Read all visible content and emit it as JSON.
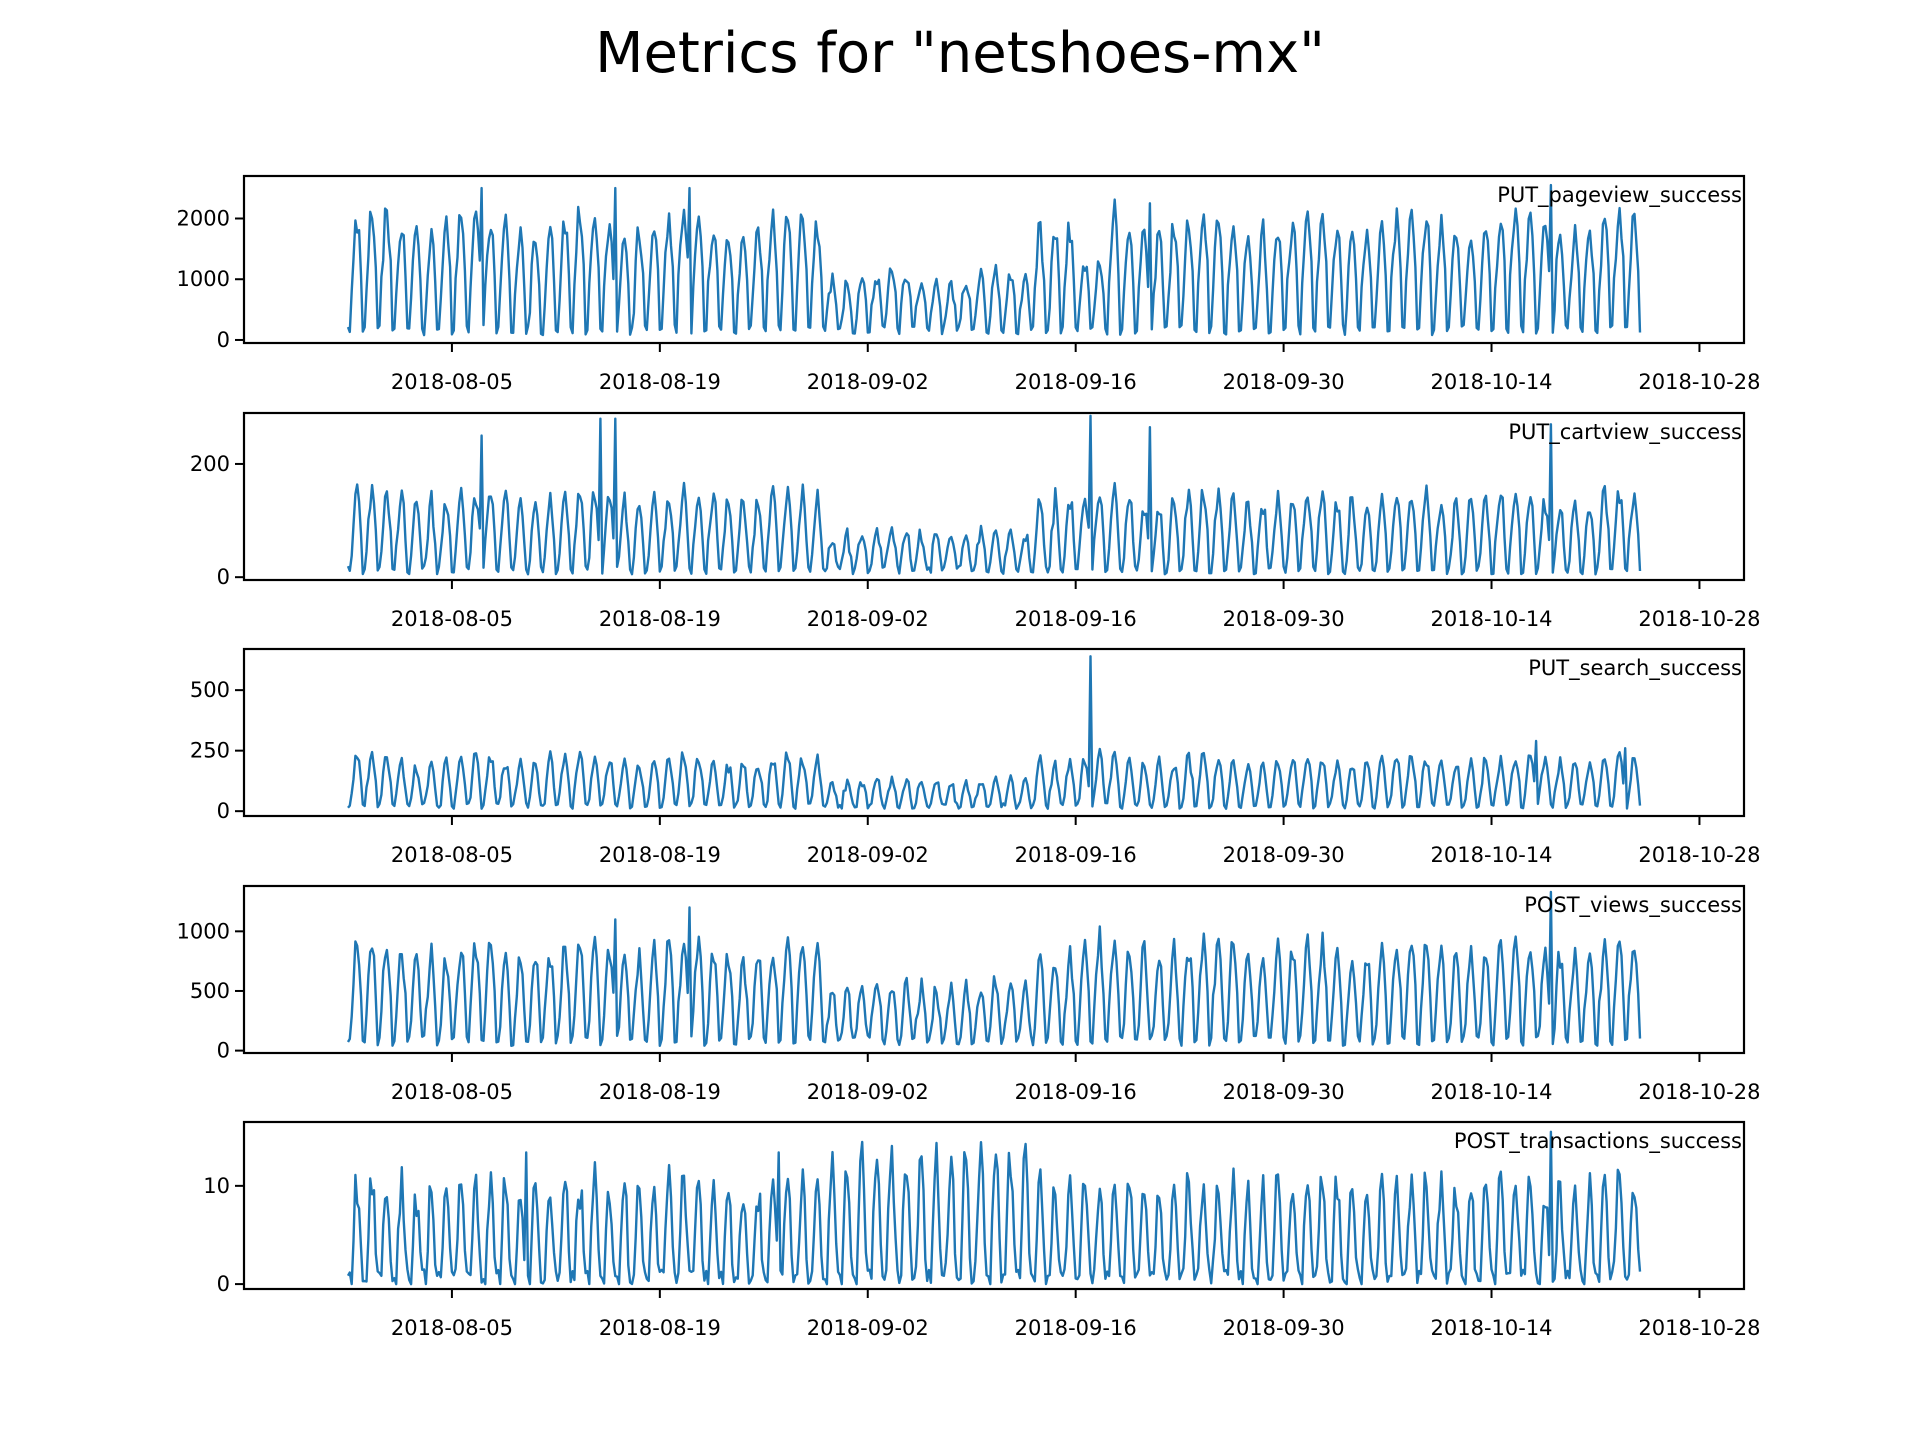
{
  "page": {
    "title": "Metrics for \"netshoes-mx\"",
    "line_color": "#1f77b4"
  },
  "chart_data": [
    {
      "type": "line",
      "series": [
        {
          "name": "PUT_pageview_success"
        }
      ],
      "x_range": [
        "2018-07-29",
        "2018-10-24"
      ],
      "xlim": [
        "2018-07-22",
        "2018-10-31"
      ],
      "ylim": [
        -50,
        2700
      ],
      "yticks": [
        0,
        1000,
        2000
      ],
      "xticks": [
        "2018-08-05",
        "2018-08-19",
        "2018-09-02",
        "2018-09-16",
        "2018-09-30",
        "2018-10-14",
        "2018-10-28"
      ],
      "baseline": 1200,
      "daily_amplitude": 700,
      "low": 80,
      "peak": 2550,
      "peaks": [
        [
          "2018-08-07",
          2500
        ],
        [
          "2018-08-16",
          2500
        ],
        [
          "2018-08-21",
          2500
        ],
        [
          "2018-09-21",
          2250
        ],
        [
          "2018-10-18",
          2550
        ]
      ],
      "dips": [
        [
          "2018-08-30",
          "2018-09-13",
          650
        ],
        [
          "2018-09-16",
          "2018-09-18",
          800
        ]
      ]
    },
    {
      "type": "line",
      "series": [
        {
          "name": "PUT_cartview_success"
        }
      ],
      "x_range": [
        "2018-07-29",
        "2018-10-24"
      ],
      "xlim": [
        "2018-07-22",
        "2018-10-31"
      ],
      "ylim": [
        -5,
        290
      ],
      "yticks": [
        0,
        200
      ],
      "xticks": [
        "2018-08-05",
        "2018-08-19",
        "2018-09-02",
        "2018-09-16",
        "2018-09-30",
        "2018-10-14",
        "2018-10-28"
      ],
      "baseline": 80,
      "daily_amplitude": 60,
      "low": 5,
      "peak": 285,
      "peaks": [
        [
          "2018-08-07",
          250
        ],
        [
          "2018-08-15",
          280
        ],
        [
          "2018-08-16",
          280
        ],
        [
          "2018-09-17",
          285
        ],
        [
          "2018-09-21",
          265
        ],
        [
          "2018-10-18",
          270
        ]
      ],
      "dips": [
        [
          "2018-08-30",
          "2018-09-13",
          45
        ]
      ]
    },
    {
      "type": "line",
      "series": [
        {
          "name": "PUT_search_success"
        }
      ],
      "x_range": [
        "2018-07-29",
        "2018-10-24"
      ],
      "xlim": [
        "2018-07-22",
        "2018-10-31"
      ],
      "ylim": [
        -20,
        670
      ],
      "yticks": [
        0,
        250,
        500
      ],
      "xticks": [
        "2018-08-05",
        "2018-08-19",
        "2018-09-02",
        "2018-09-16",
        "2018-09-30",
        "2018-10-14",
        "2018-10-28"
      ],
      "baseline": 120,
      "daily_amplitude": 95,
      "low": 10,
      "peak": 640,
      "peaks": [
        [
          "2018-09-17",
          640
        ],
        [
          "2018-10-17",
          290
        ],
        [
          "2018-10-23",
          260
        ]
      ],
      "dips": [
        [
          "2018-08-30",
          "2018-09-13",
          70
        ]
      ]
    },
    {
      "type": "line",
      "series": [
        {
          "name": "POST_views_success"
        }
      ],
      "x_range": [
        "2018-07-29",
        "2018-10-24"
      ],
      "xlim": [
        "2018-07-22",
        "2018-10-31"
      ],
      "ylim": [
        -20,
        1380
      ],
      "yticks": [
        0,
        500,
        1000
      ],
      "xticks": [
        "2018-08-05",
        "2018-08-19",
        "2018-09-02",
        "2018-09-16",
        "2018-09-30",
        "2018-10-14",
        "2018-10-28"
      ],
      "baseline": 500,
      "daily_amplitude": 350,
      "low": 40,
      "peak": 1330,
      "peaks": [
        [
          "2018-08-16",
          1100
        ],
        [
          "2018-08-21",
          1200
        ],
        [
          "2018-10-18",
          1330
        ]
      ],
      "dips": [
        [
          "2018-08-30",
          "2018-09-13",
          320
        ]
      ]
    },
    {
      "type": "line",
      "series": [
        {
          "name": "POST_transactions_success"
        }
      ],
      "x_range": [
        "2018-07-29",
        "2018-10-24"
      ],
      "xlim": [
        "2018-07-22",
        "2018-10-31"
      ],
      "ylim": [
        -0.5,
        16.5
      ],
      "yticks": [
        0,
        10
      ],
      "xticks": [
        "2018-08-05",
        "2018-08-19",
        "2018-09-02",
        "2018-09-16",
        "2018-09-30",
        "2018-10-14",
        "2018-10-28"
      ],
      "baseline": 4,
      "daily_amplitude": 6,
      "low": 0,
      "peak": 15.5,
      "peaks": [
        [
          "2018-08-10",
          13.4
        ],
        [
          "2018-08-27",
          13.4
        ],
        [
          "2018-10-18",
          15.5
        ]
      ],
      "dips": [
        [
          "2018-08-30",
          "2018-09-13",
          5
        ]
      ]
    }
  ]
}
